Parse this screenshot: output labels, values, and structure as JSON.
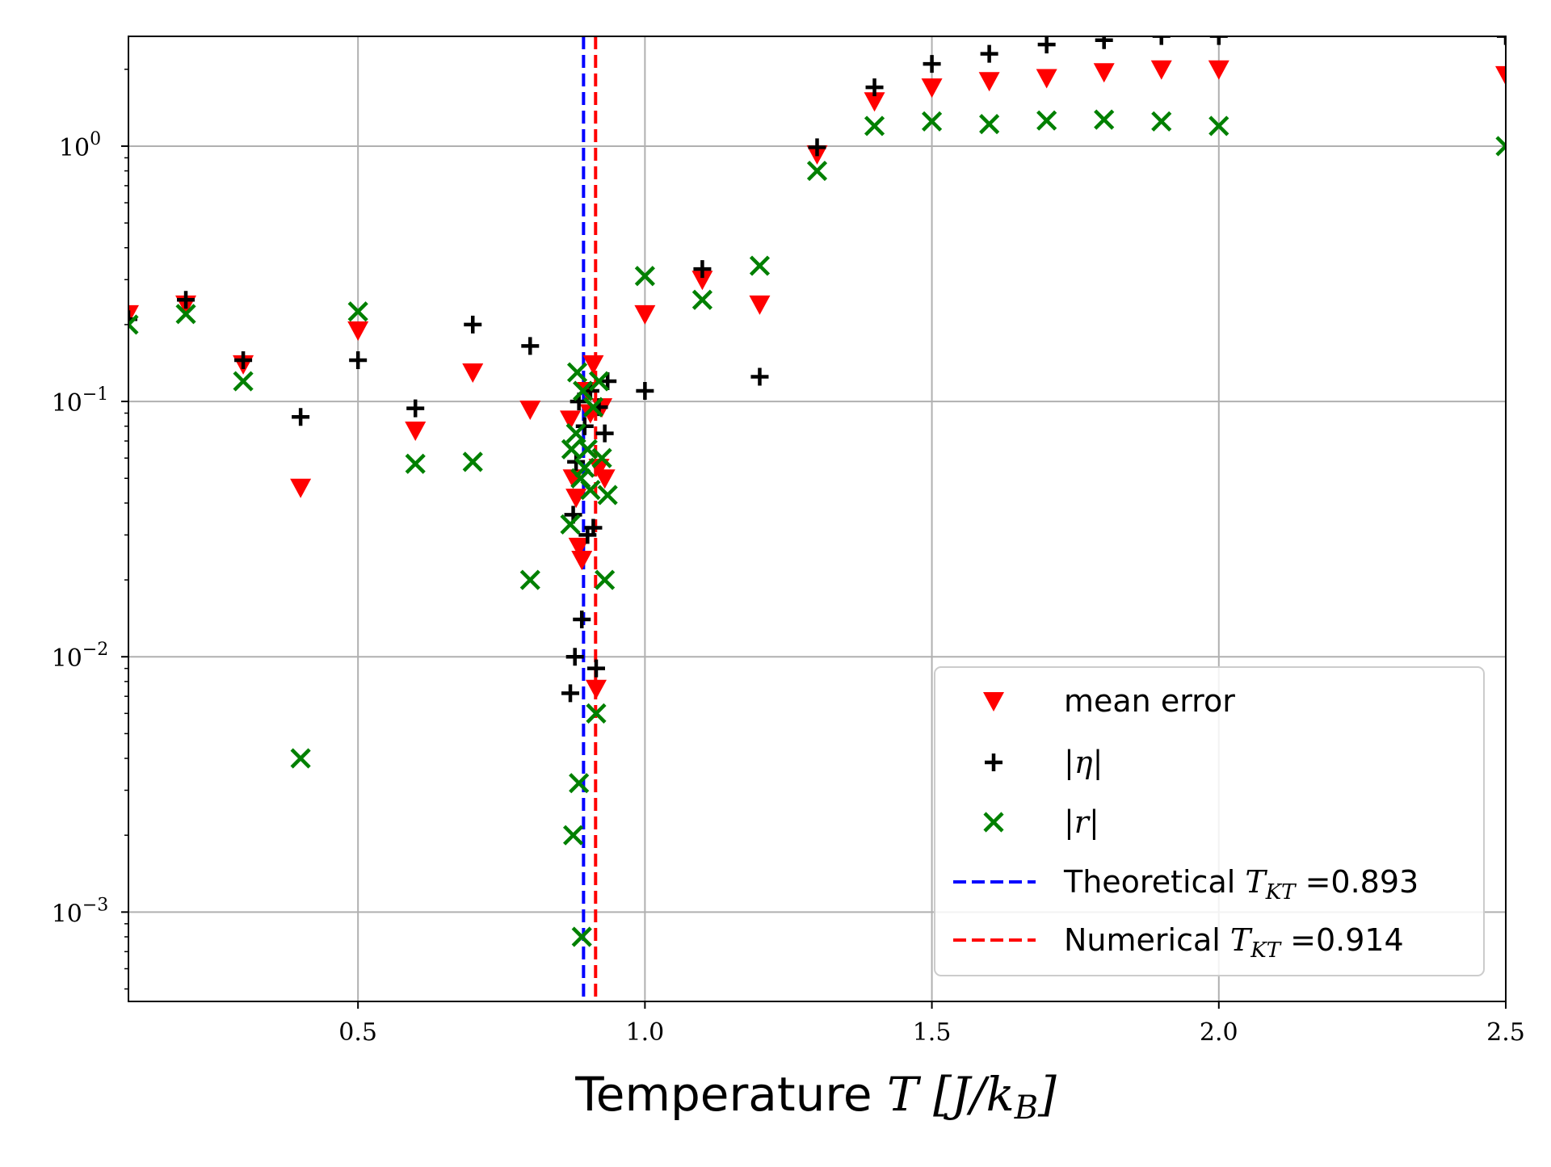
{
  "chart_data": {
    "type": "scatter",
    "xlabel": {
      "prefix": "Temperature ",
      "math": "T [J/k",
      "sub": "B",
      "suffix": "]"
    },
    "ylabel": "",
    "xlim": [
      0.1,
      2.5
    ],
    "ylim_log10": [
      -3.35,
      0.43
    ],
    "yscale": "log",
    "grid": true,
    "legend_position": "lower-right",
    "x_ticks": [
      {
        "value": 0.5,
        "label": "0.5"
      },
      {
        "value": 1.0,
        "label": "1.0"
      },
      {
        "value": 1.5,
        "label": "1.5"
      },
      {
        "value": 2.0,
        "label": "2.0"
      },
      {
        "value": 2.5,
        "label": "2.5"
      }
    ],
    "y_ticks": [
      {
        "value": 1,
        "base": "10",
        "exp": "0"
      },
      {
        "value": 0.1,
        "base": "10",
        "exp": "−1"
      },
      {
        "value": 0.01,
        "base": "10",
        "exp": "−2"
      },
      {
        "value": 0.001,
        "base": "10",
        "exp": "−3"
      }
    ],
    "series": [
      {
        "name": "mean error",
        "marker": "triangle-down",
        "color": "#ff0000",
        "points": [
          [
            0.1,
            0.22
          ],
          [
            0.2,
            0.24
          ],
          [
            0.3,
            0.14
          ],
          [
            0.4,
            0.046
          ],
          [
            0.5,
            0.19
          ],
          [
            0.6,
            0.077
          ],
          [
            0.7,
            0.13
          ],
          [
            0.8,
            0.093
          ],
          [
            0.87,
            0.085
          ],
          [
            0.875,
            0.05
          ],
          [
            0.88,
            0.042
          ],
          [
            0.885,
            0.027
          ],
          [
            0.89,
            0.024
          ],
          [
            0.9,
            0.11
          ],
          [
            0.905,
            0.09
          ],
          [
            0.91,
            0.14
          ],
          [
            0.915,
            0.0075
          ],
          [
            0.92,
            0.055
          ],
          [
            0.925,
            0.095
          ],
          [
            0.93,
            0.05
          ],
          [
            1.0,
            0.22
          ],
          [
            1.1,
            0.3
          ],
          [
            1.2,
            0.24
          ],
          [
            1.3,
            0.93
          ],
          [
            1.4,
            1.5
          ],
          [
            1.5,
            1.7
          ],
          [
            1.6,
            1.8
          ],
          [
            1.7,
            1.85
          ],
          [
            1.8,
            1.95
          ],
          [
            1.9,
            2.0
          ],
          [
            2.0,
            2.0
          ],
          [
            2.5,
            1.9
          ]
        ]
      },
      {
        "name": "|η|",
        "marker": "plus",
        "color": "#000000",
        "points": [
          [
            0.1,
            0.21
          ],
          [
            0.2,
            0.25
          ],
          [
            0.3,
            0.145
          ],
          [
            0.4,
            0.087
          ],
          [
            0.5,
            0.145
          ],
          [
            0.6,
            0.094
          ],
          [
            0.7,
            0.2
          ],
          [
            0.8,
            0.165
          ],
          [
            0.87,
            0.0072
          ],
          [
            0.875,
            0.036
          ],
          [
            0.878,
            0.01
          ],
          [
            0.88,
            0.058
          ],
          [
            0.885,
            0.1
          ],
          [
            0.89,
            0.014
          ],
          [
            0.895,
            0.08
          ],
          [
            0.9,
            0.03
          ],
          [
            0.905,
            0.11
          ],
          [
            0.91,
            0.032
          ],
          [
            0.915,
            0.009
          ],
          [
            0.92,
            0.095
          ],
          [
            0.93,
            0.075
          ],
          [
            0.935,
            0.12
          ],
          [
            1.0,
            0.11
          ],
          [
            1.1,
            0.33
          ],
          [
            1.2,
            0.125
          ],
          [
            1.3,
            0.99
          ],
          [
            1.4,
            1.7
          ],
          [
            1.5,
            2.1
          ],
          [
            1.6,
            2.3
          ],
          [
            1.7,
            2.5
          ],
          [
            1.8,
            2.6
          ],
          [
            1.9,
            2.7
          ],
          [
            2.0,
            2.7
          ],
          [
            2.5,
            2.7
          ]
        ]
      },
      {
        "name": "|r|",
        "marker": "x",
        "color": "#008000",
        "points": [
          [
            0.1,
            0.2
          ],
          [
            0.2,
            0.22
          ],
          [
            0.3,
            0.12
          ],
          [
            0.4,
            0.004
          ],
          [
            0.5,
            0.225
          ],
          [
            0.6,
            0.057
          ],
          [
            0.7,
            0.058
          ],
          [
            0.8,
            0.02
          ],
          [
            0.87,
            0.033
          ],
          [
            0.872,
            0.065
          ],
          [
            0.875,
            0.002
          ],
          [
            0.88,
            0.075
          ],
          [
            0.882,
            0.13
          ],
          [
            0.885,
            0.0032
          ],
          [
            0.888,
            0.05
          ],
          [
            0.89,
            0.0008
          ],
          [
            0.892,
            0.11
          ],
          [
            0.895,
            0.055
          ],
          [
            0.9,
            0.065
          ],
          [
            0.905,
            0.045
          ],
          [
            0.91,
            0.095
          ],
          [
            0.915,
            0.006
          ],
          [
            0.92,
            0.12
          ],
          [
            0.925,
            0.06
          ],
          [
            0.93,
            0.02
          ],
          [
            0.935,
            0.043
          ],
          [
            1.0,
            0.31
          ],
          [
            1.1,
            0.25
          ],
          [
            1.2,
            0.34
          ],
          [
            1.3,
            0.8
          ],
          [
            1.4,
            1.2
          ],
          [
            1.5,
            1.25
          ],
          [
            1.6,
            1.22
          ],
          [
            1.7,
            1.26
          ],
          [
            1.8,
            1.27
          ],
          [
            1.9,
            1.25
          ],
          [
            2.0,
            1.2
          ],
          [
            2.5,
            1.0
          ]
        ]
      }
    ],
    "vlines": [
      {
        "name": "Theoretical",
        "x": 0.893,
        "color": "#0000ff",
        "style": "dashed"
      },
      {
        "name": "Numerical",
        "x": 0.914,
        "color": "#ff0000",
        "style": "dashed"
      }
    ],
    "legend": [
      {
        "key": "mean",
        "text": "mean error",
        "math": "",
        "value": ""
      },
      {
        "key": "eta",
        "text": "",
        "math": "|η|",
        "value": ""
      },
      {
        "key": "r",
        "text": "",
        "math": "|r|",
        "value": ""
      },
      {
        "key": "theo",
        "text": "Theoretical ",
        "math": "T",
        "sub": "KT",
        "value": " =0.893"
      },
      {
        "key": "num",
        "text": "Numerical ",
        "math": "T",
        "sub": "KT",
        "value": " =0.914"
      }
    ]
  }
}
